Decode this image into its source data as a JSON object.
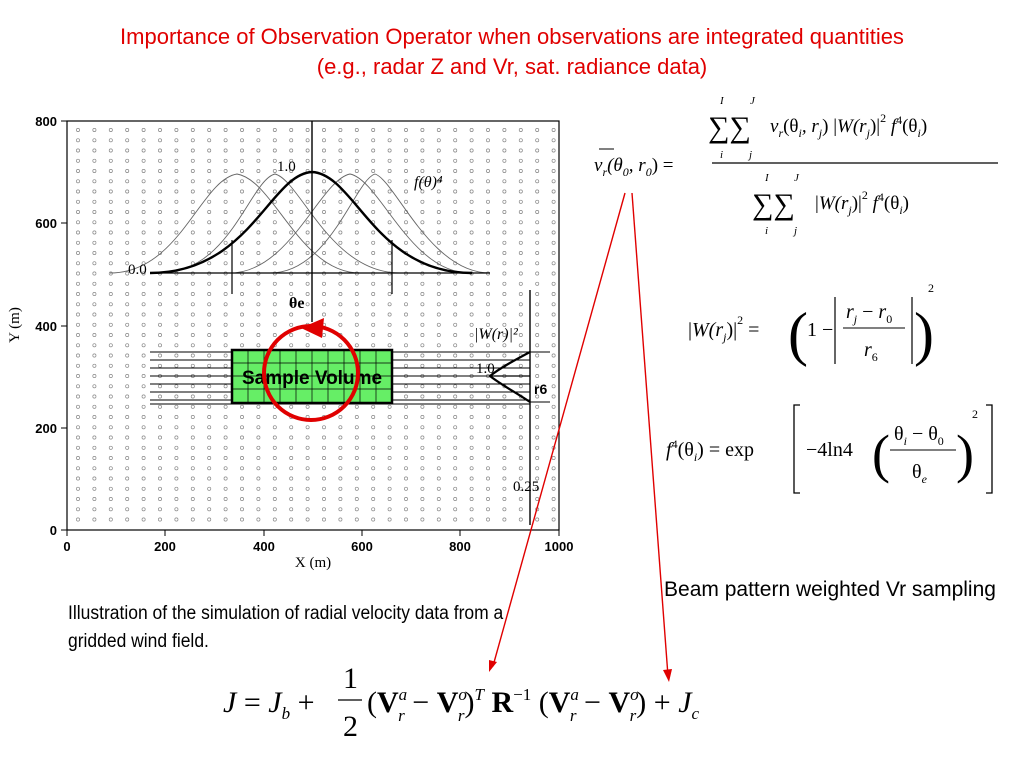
{
  "title": {
    "line1": "Importance of Observation Operator when observations are integrated quantities",
    "line2": "(e.g., radar Z and Vr, sat. radiance data)"
  },
  "plot": {
    "x_label": "X (m)",
    "y_label": "Y (m)",
    "x_ticks": [
      "0",
      "200",
      "400",
      "600",
      "800",
      "1000"
    ],
    "y_ticks": [
      "0",
      "200",
      "400",
      "600",
      "800"
    ],
    "sample_volume_label": "Sample Volume",
    "beam_label": "f(θ)⁴",
    "beam_peak_label": "1.0",
    "beam_base_label": "0.0",
    "theta_e_label": "θe",
    "weight_label": "|W(r)|²",
    "weight_peak_label": "1.0",
    "weight_tail_label": "0.25",
    "r6_label": "r6"
  },
  "equations": {
    "vr_mean": "v̄r(θ0, r0) = ΣI ΣJ vr(θi, rj) |W(rj)|² f⁴(θi) / ΣI ΣJ |W(rj)|² f⁴(θi)",
    "weight": "|W(rj)|² = (1 − |(rj − r0)/r6|)²",
    "beam": "f⁴(θi) = exp[−4 ln4 ((θi − θ0)/θe)²]",
    "cost": "J = Jb + ½ (Vra − Vro)ᵀ R⁻¹ (Vra − Vro) + Jc"
  },
  "captions": {
    "left": "Illustration of the simulation of radial velocity data from a gridded wind field.",
    "right": "Beam pattern weighted Vr sampling"
  },
  "colors": {
    "title": "#e00000",
    "arrow": "#e00000",
    "sample_volume_fill": "#66ee66"
  }
}
